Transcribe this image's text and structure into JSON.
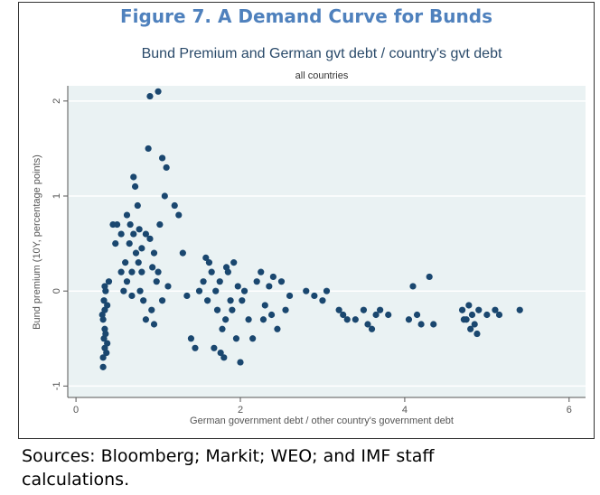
{
  "figure": {
    "title": "Figure 7. A Demand Curve for Bunds",
    "source": "Sources: Bloomberg; Markit; WEO; and IMF staff calculations."
  },
  "chart_data": {
    "type": "scatter",
    "title": "Bund Premium and German gvt debt / country's gvt debt",
    "subtitle": "all countries",
    "x_label": "German government debt / other country's government debt",
    "y_label": "Bund premium (10Y, percentage points)",
    "color": "#1a476f",
    "grid": true,
    "xlim": [
      -0.1,
      6.2
    ],
    "ylim": [
      -1.12,
      2.16
    ],
    "xticks": [
      0,
      2,
      4,
      6
    ],
    "yticks": [
      -1,
      0,
      1,
      2
    ],
    "x": [
      0.33,
      0.33,
      0.35,
      0.34,
      0.36,
      0.35,
      0.33,
      0.35,
      0.34,
      0.36,
      0.35,
      0.38,
      0.37,
      0.32,
      0.38,
      0.4,
      0.45,
      0.5,
      0.55,
      0.48,
      0.6,
      0.62,
      0.65,
      0.68,
      0.7,
      0.72,
      0.75,
      0.7,
      0.73,
      0.76,
      0.78,
      0.8,
      0.82,
      0.85,
      0.88,
      0.9,
      0.95,
      0.98,
      1.0,
      1.05,
      1.1,
      1.08,
      1.02,
      0.92,
      0.85,
      0.95,
      1.0,
      1.05,
      0.62,
      0.66,
      0.58,
      0.55,
      0.8,
      0.9,
      0.93,
      0.77,
      0.68,
      1.12,
      1.2,
      1.25,
      1.3,
      1.35,
      1.4,
      1.45,
      1.5,
      1.55,
      1.6,
      1.62,
      1.65,
      1.7,
      1.72,
      1.75,
      1.78,
      1.8,
      1.82,
      1.85,
      1.88,
      1.9,
      1.92,
      1.95,
      2.0,
      2.02,
      2.05,
      1.68,
      1.76,
      1.58,
      1.83,
      1.97,
      2.1,
      2.2,
      2.25,
      2.3,
      2.35,
      2.4,
      2.45,
      2.5,
      2.55,
      2.6,
      2.15,
      2.28,
      2.38,
      2.8,
      2.9,
      3.0,
      3.05,
      3.2,
      3.25,
      3.4,
      3.5,
      3.55,
      3.6,
      3.65,
      3.8,
      4.05,
      4.1,
      4.2,
      4.3,
      4.35,
      3.3,
      3.7,
      4.15,
      4.7,
      4.75,
      4.8,
      4.82,
      4.85,
      4.9,
      4.78,
      5.0,
      5.1,
      5.15,
      5.4,
      4.72,
      4.88
    ],
    "values": [
      -0.8,
      -0.7,
      -0.6,
      -0.5,
      -0.45,
      -0.4,
      -0.3,
      -0.2,
      -0.1,
      0,
      0.05,
      -0.55,
      -0.65,
      -0.25,
      -0.15,
      0.1,
      0.7,
      0.7,
      0.6,
      0.5,
      0.3,
      0.1,
      0.5,
      0.2,
      1.2,
      1.1,
      0.9,
      0.6,
      0.4,
      0.3,
      0,
      0.2,
      -0.1,
      0.6,
      1.5,
      2.05,
      0.4,
      0.1,
      2.1,
      1.4,
      1.3,
      1.0,
      0.7,
      -0.2,
      -0.3,
      -0.35,
      0.2,
      -0.1,
      0.8,
      0.7,
      0,
      0.2,
      0.45,
      0.55,
      0.25,
      0.65,
      -0.05,
      0.05,
      0.9,
      0.8,
      0.4,
      -0.05,
      -0.5,
      -0.6,
      0,
      0.1,
      -0.1,
      0.3,
      0.2,
      0,
      -0.2,
      0.1,
      -0.4,
      -0.7,
      -0.3,
      0.2,
      -0.1,
      -0.2,
      0.3,
      -0.5,
      -0.75,
      -0.1,
      0,
      -0.6,
      -0.65,
      0.35,
      0.25,
      0.05,
      -0.3,
      0.1,
      0.2,
      -0.15,
      0.05,
      0.15,
      -0.4,
      0.1,
      -0.2,
      -0.05,
      -0.5,
      -0.3,
      -0.25,
      0,
      -0.05,
      -0.1,
      0,
      -0.2,
      -0.25,
      -0.3,
      -0.2,
      -0.35,
      -0.4,
      -0.25,
      -0.25,
      -0.3,
      0.05,
      -0.35,
      0.15,
      -0.35,
      -0.3,
      -0.2,
      -0.25,
      -0.2,
      -0.3,
      -0.4,
      -0.25,
      -0.35,
      -0.2,
      -0.15,
      -0.25,
      -0.2,
      -0.25,
      -0.2,
      -0.3,
      -0.45
    ]
  }
}
